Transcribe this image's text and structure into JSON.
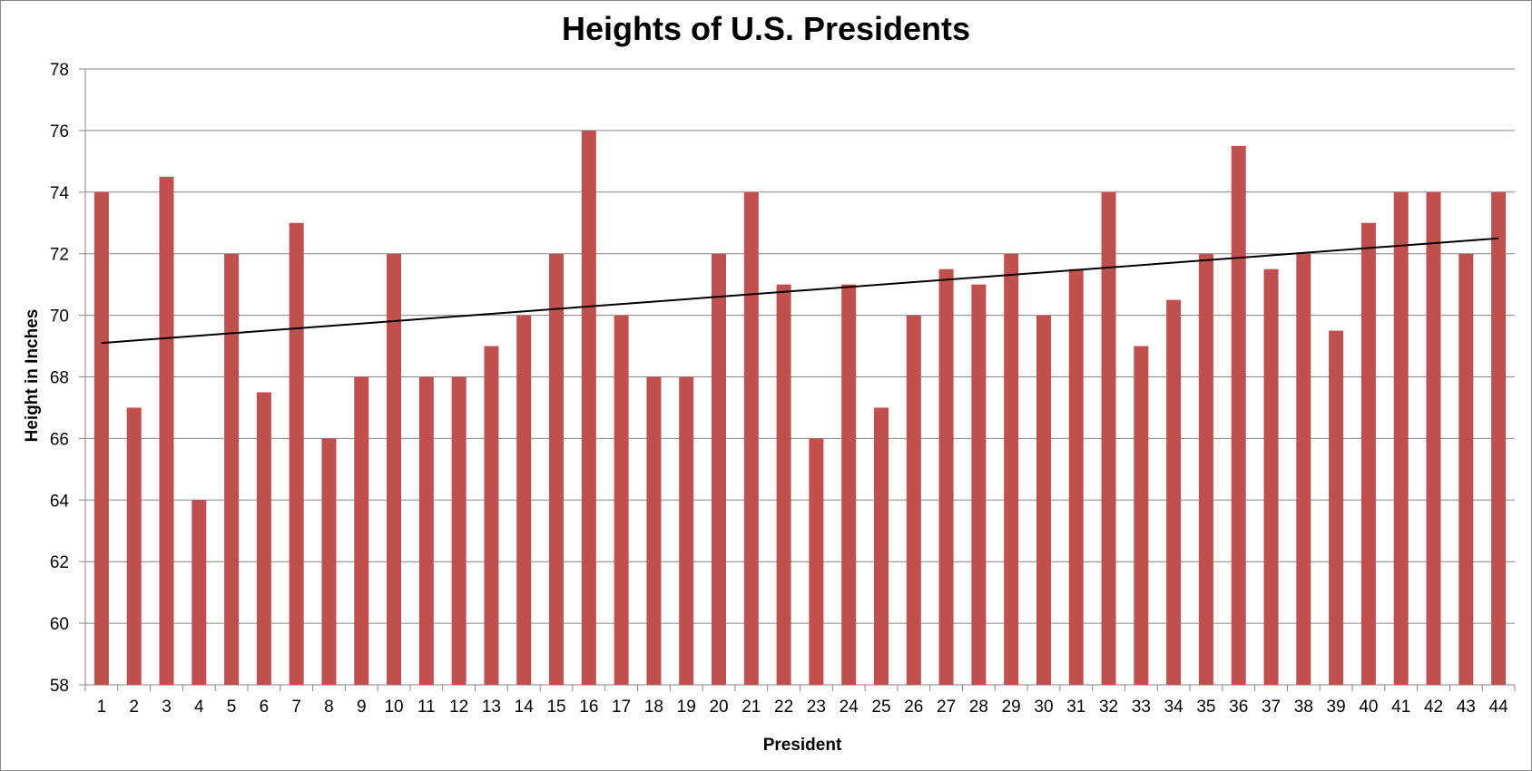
{
  "chart_data": {
    "type": "bar",
    "title": "Heights of U.S. Presidents",
    "xlabel": "President",
    "ylabel": "Height in Inches",
    "categories": [
      "1",
      "2",
      "3",
      "4",
      "5",
      "6",
      "7",
      "8",
      "9",
      "10",
      "11",
      "12",
      "13",
      "14",
      "15",
      "16",
      "17",
      "18",
      "19",
      "20",
      "21",
      "22",
      "23",
      "24",
      "25",
      "26",
      "27",
      "28",
      "29",
      "30",
      "31",
      "32",
      "33",
      "34",
      "35",
      "36",
      "37",
      "38",
      "39",
      "40",
      "41",
      "42",
      "43",
      "44"
    ],
    "values": [
      74,
      67,
      74.5,
      64,
      72,
      67.5,
      73,
      66,
      68,
      72,
      68,
      68,
      69,
      70,
      72,
      76,
      70,
      68,
      68,
      72,
      74,
      71,
      66,
      71,
      67,
      70,
      71.5,
      71,
      72,
      70,
      71.5,
      74,
      69,
      70.5,
      72,
      75.5,
      71.5,
      72,
      69.5,
      73,
      74,
      74,
      72,
      74
    ],
    "ylim": [
      58,
      78
    ],
    "yticks": [
      "58",
      "60",
      "62",
      "64",
      "66",
      "68",
      "70",
      "72",
      "74",
      "76",
      "78"
    ],
    "grid": true,
    "legend": "none",
    "trendline": {
      "type": "linear",
      "start": 69.1,
      "end": 72.5
    },
    "colors": {
      "bar": "#C0504D",
      "grid": "#868686",
      "trendline": "#000000"
    }
  }
}
